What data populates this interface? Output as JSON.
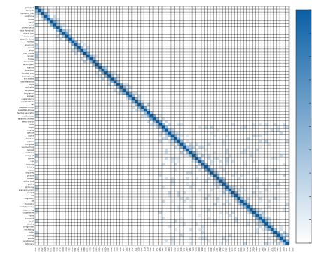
{
  "chart_data": {
    "type": "heatmap",
    "title": "",
    "xlabel": "",
    "ylabel": "",
    "colorscale": {
      "low": "#ffffff",
      "high": "#0b5fa5"
    },
    "colorbar": {
      "visible": true,
      "ticks": 10,
      "tick_labels": []
    },
    "grid": true,
    "y_labels": [
      "gamepad",
      "beerpub",
      "marketing hub",
      "sculptures",
      "home",
      "ingest",
      "wood",
      "kitchen sinks",
      "data thumbnail",
      "plug-in gen",
      "travel eval",
      "graphite fibres",
      "rooftop",
      "aquarium",
      "sound",
      "shop",
      "hard drives",
      "cellular",
      "frame",
      "thresholds",
      "airsoft gear",
      "finance",
      "invention",
      "fountain pen",
      "boardgames",
      "surf skates",
      "hypothalamus",
      "apple",
      "pool table",
      "templates",
      "biographic",
      "renewal",
      "sustainability",
      "operator tools",
      "ski",
      "basketball hoop",
      "basketball gloves",
      "hashtag generator",
      "notifications",
      "facebook contest",
      "webs design",
      "mug",
      "crafts",
      "jogging",
      "agenda",
      "layers",
      "furniture",
      "laptops",
      "mortgage",
      "woodworking",
      "magnet",
      "road trips",
      "sewing kit",
      "jigsaw",
      "cup",
      "cleaning",
      "bakery",
      "game",
      "jeopardy",
      "picture",
      "scream",
      "pickup cart",
      "pastry",
      "gardening",
      "scanning sensor",
      "basket",
      "list",
      "diagnostic",
      "ctf",
      "chemistry",
      "crash discovery",
      "data mining",
      "cooperative",
      "wire",
      "transcript",
      "wool",
      "poetry",
      "salt grinder",
      "crocheting",
      "cellar",
      "coding",
      "vocals",
      "sandboxing",
      "dictionary"
    ],
    "x_labels": [
      "0014",
      "0113",
      "0201",
      "0208",
      "0221",
      "0301",
      "0308",
      "0315",
      "0402",
      "0409",
      "0416",
      "0503",
      "0510",
      "0517",
      "0604",
      "0611",
      "0618",
      "0702",
      "0709",
      "0716",
      "0803",
      "0810",
      "0817",
      "0904",
      "0911",
      "0918",
      "1002",
      "1009",
      "1016",
      "1103",
      "1110",
      "1117",
      "1204",
      "1211",
      "1218",
      "1302",
      "1309",
      "1316",
      "1403",
      "1410",
      "1417",
      "1504",
      "1511",
      "1518",
      "1602",
      "1609",
      "1616",
      "1703",
      "1710",
      "1717",
      "1804",
      "1811",
      "1818",
      "1902",
      "1909",
      "1916",
      "2003",
      "2010",
      "2017",
      "2104",
      "2111",
      "2118",
      "2202",
      "2209",
      "2216",
      "2303",
      "2310",
      "2317",
      "2404",
      "2411",
      "2418",
      "2502",
      "2509",
      "2516",
      "2603",
      "2610",
      "2617",
      "2704",
      "2711",
      "2718",
      "2802",
      "2809",
      "2816",
      "2903",
      "2910",
      "2917"
    ]
  }
}
